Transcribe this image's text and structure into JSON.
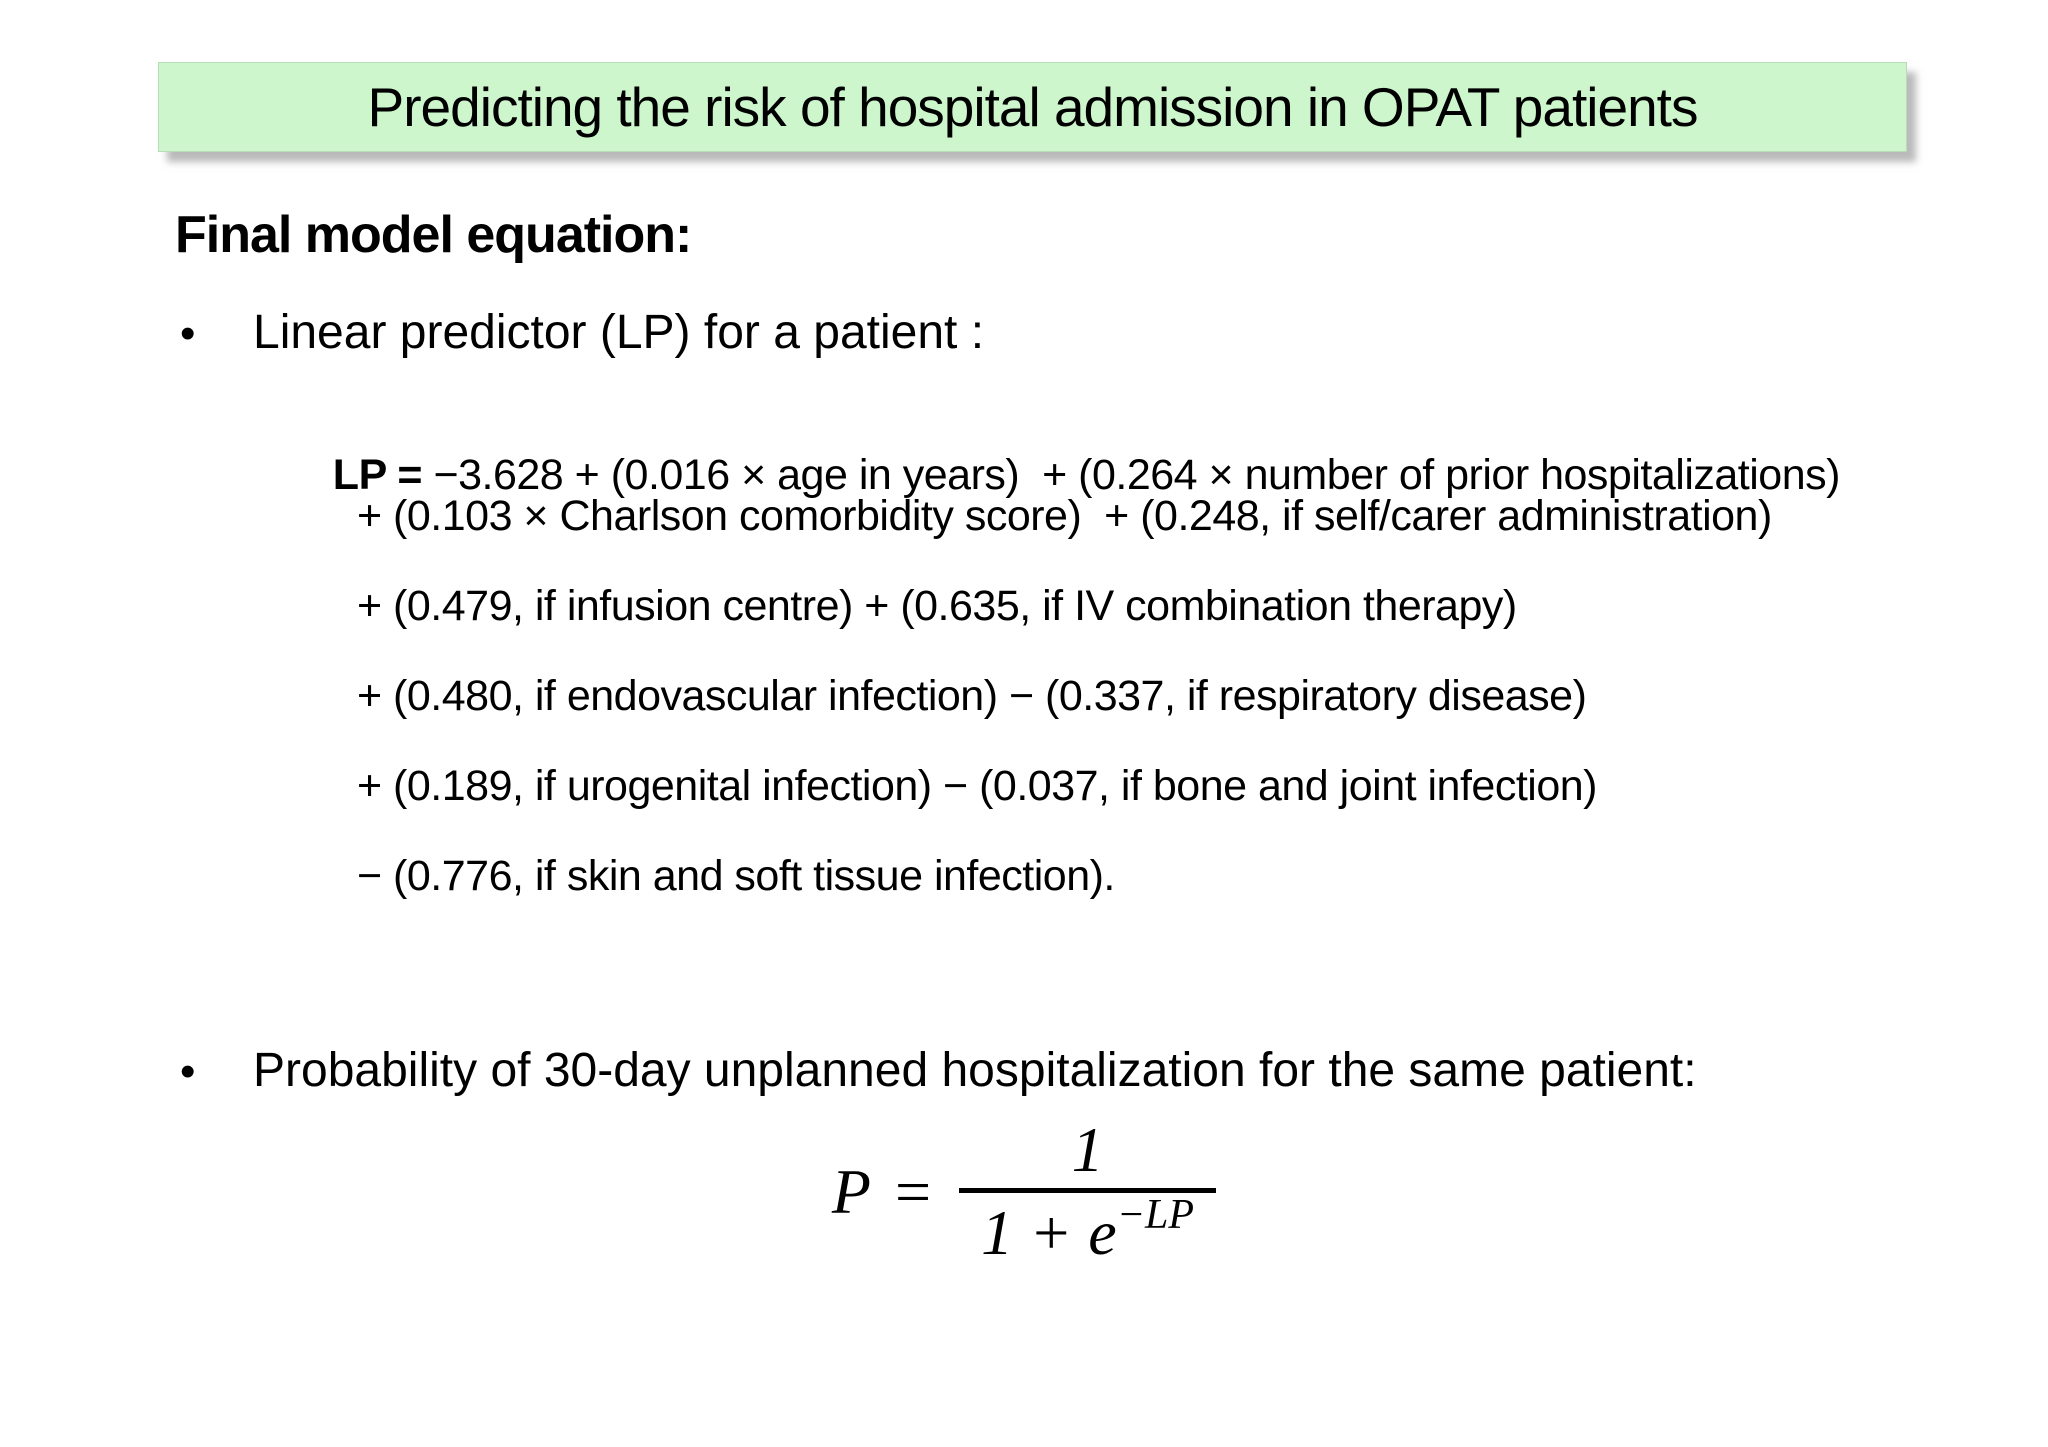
{
  "slide": {
    "title": "Predicting the risk of hospital admission in OPAT patients",
    "heading": "Final model equation:",
    "bullet_char": "•",
    "bullets": {
      "linear_predictor": "Linear predictor (LP) for a patient :",
      "probability": "Probability of 30-day unplanned hospitalization for the same patient:"
    },
    "equation": {
      "lp_label": "LP = ",
      "line1_rest": "−3.628 + (0.016 × age in years)  + (0.264 × number of prior hospitalizations)",
      "lines": [
        "+ (0.103 × Charlson comorbidity score)  + (0.248, if self/carer administration)",
        "+ (0.479, if infusion centre) + (0.635, if IV combination therapy)",
        "+ (0.480, if endovascular infection) − (0.337, if respiratory disease)",
        "+ (0.189, if urogenital infection) − (0.037, if bone and joint infection)",
        "− (0.776, if skin and soft tissue infection)."
      ]
    },
    "formula": {
      "lhs": "P",
      "equals": "=",
      "numerator": "1",
      "denominator_base": "1 + e",
      "exponent": "−LP"
    },
    "colors": {
      "banner_bg": "#cdf6cd",
      "banner_shadow": "#828282",
      "text": "#000000",
      "background": "#ffffff"
    }
  }
}
